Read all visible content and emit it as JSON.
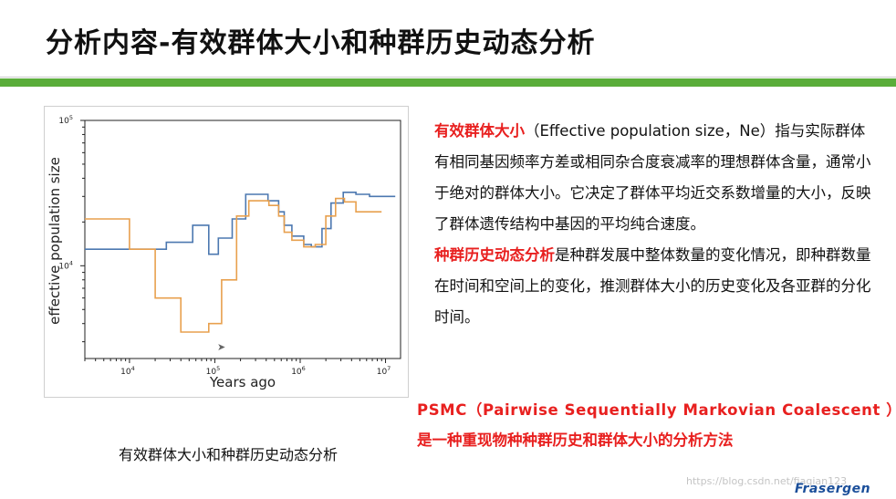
{
  "slide": {
    "title": "分析内容-有效群体大小和种群历史动态分析",
    "caption": "有效群体大小和种群历史动态分析"
  },
  "description": {
    "term1": "有效群体大小",
    "p1_rest": "（Effective population size，Ne）指与实际群体有相同基因频率方差或相同杂合度衰减率的理想群体含量，通常小于绝对的群体大小。它决定了群体平均近交系数增量的大小，反映了群体遗传结构中基因的平均纯合速度。",
    "term2": "种群历史动态分析",
    "p2_rest": "是种群发展中整体数量的变化情况，即种群数量在时间和空间上的变化，推测群体大小的历史变化及各亚群的分化时间。"
  },
  "psmc": {
    "line1": "PSMC（Pairwise Sequentially Markovian Coalescent ）：",
    "line2": "是一种重现物种种群历史和群体大小的分析方法"
  },
  "footer": {
    "logo": "Frasergen",
    "watermark": "https://blog.csdn.net/fiaqian123"
  },
  "colors": {
    "series_blue": "#4c78b0",
    "series_orange": "#e8a04e",
    "accent_green": "#5aad3a",
    "accent_red": "#e8201f"
  },
  "chart_data": {
    "type": "line",
    "step": true,
    "xlabel": "Years ago",
    "ylabel": "effective population size",
    "xscale": "log",
    "yscale": "log",
    "xlim": [
      3000,
      15000000
    ],
    "ylim": [
      2300,
      100000
    ],
    "x_ticks": [
      {
        "value": 10000,
        "label_base": "10",
        "label_exp": "4"
      },
      {
        "value": 100000,
        "label_base": "10",
        "label_exp": "5"
      },
      {
        "value": 1000000,
        "label_base": "10",
        "label_exp": "6"
      },
      {
        "value": 10000000,
        "label_base": "10",
        "label_exp": "7"
      }
    ],
    "y_ticks": [
      {
        "value": 10000,
        "label_base": "10",
        "label_exp": "4"
      },
      {
        "value": 100000,
        "label_base": "10",
        "label_exp": "5"
      }
    ],
    "series": [
      {
        "color": "#4c78b0",
        "x": [
          3000,
          12000,
          27000,
          55000,
          85000,
          110000,
          160000,
          230000,
          420000,
          560000,
          650000,
          800000,
          1100000,
          1350000,
          1800000,
          2300000,
          3200000,
          4500000,
          6500000,
          9000000,
          13000000
        ],
        "y": [
          13000,
          13000,
          14500,
          19000,
          12000,
          15500,
          21000,
          31000,
          28000,
          23500,
          19000,
          16000,
          14000,
          13500,
          18000,
          27000,
          32000,
          31000,
          30000,
          30000,
          30000
        ]
      },
      {
        "color": "#e8a04e",
        "x": [
          3000,
          10000,
          20000,
          30000,
          40000,
          60000,
          85000,
          120000,
          180000,
          250000,
          430000,
          560000,
          650000,
          800000,
          1100000,
          1500000,
          2000000,
          2600000,
          3300000,
          4500000,
          6500000,
          9000000
        ],
        "y": [
          21000,
          13000,
          6000,
          6000,
          3500,
          3500,
          4000,
          8000,
          22000,
          28000,
          26000,
          22000,
          17000,
          15000,
          13500,
          14000,
          22000,
          29000,
          27500,
          23500,
          23500,
          23500
        ]
      }
    ]
  }
}
